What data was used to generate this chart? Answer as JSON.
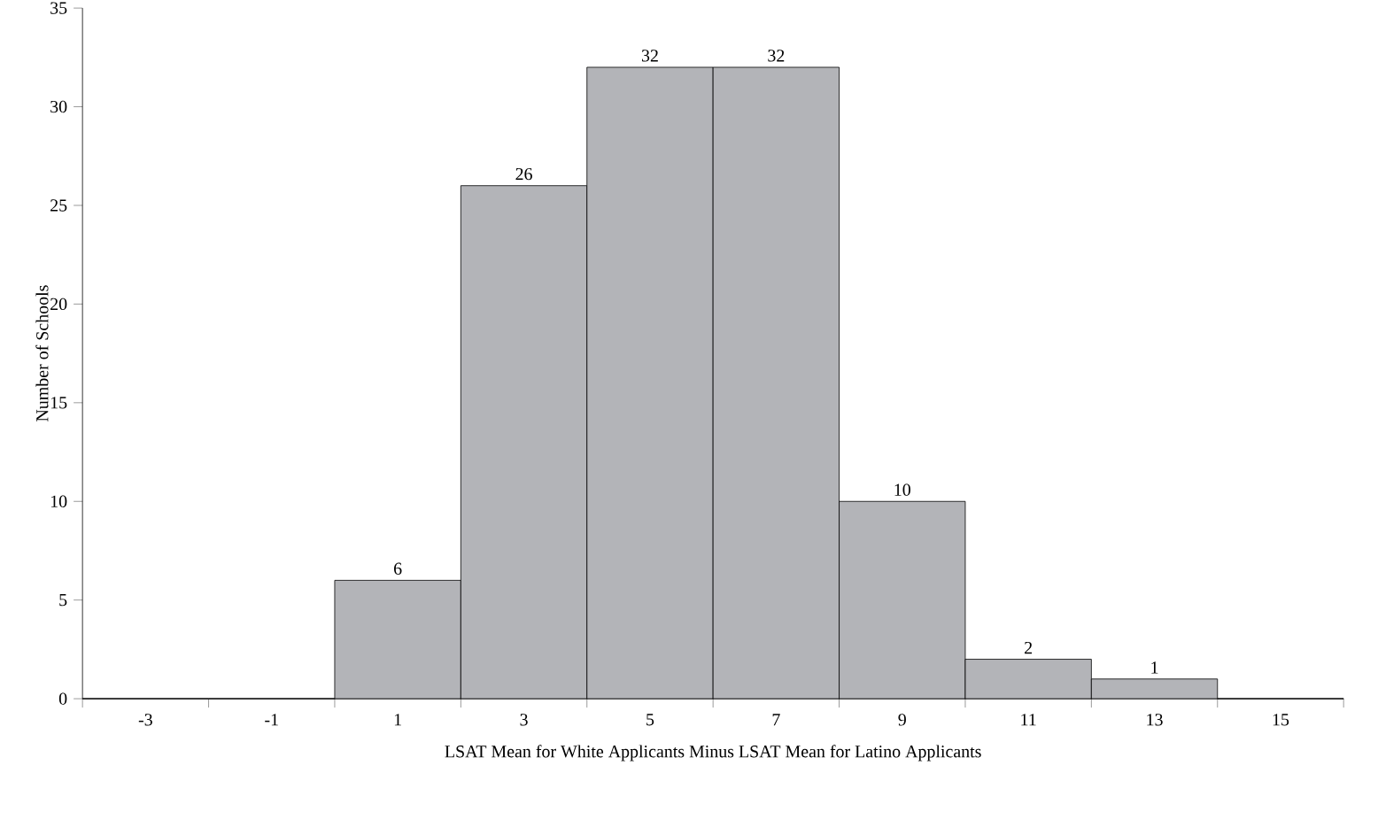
{
  "chart_data": {
    "type": "bar",
    "xlabel": "LSAT Mean for White Applicants Minus LSAT Mean for Latino Applicants",
    "ylabel": "Number of Schools",
    "categories": [
      "-3",
      "-1",
      "1",
      "3",
      "5",
      "7",
      "9",
      "11",
      "13",
      "15"
    ],
    "values": [
      0,
      0,
      6,
      26,
      32,
      32,
      10,
      2,
      1,
      0
    ],
    "value_labels": [
      null,
      null,
      "6",
      "26",
      "32",
      "32",
      "10",
      "2",
      "1",
      null
    ],
    "color": "#b3b4b8",
    "ylim": [
      0,
      35
    ],
    "yticks": [
      0,
      5,
      10,
      15,
      20,
      25,
      30,
      35
    ],
    "grid": false
  }
}
